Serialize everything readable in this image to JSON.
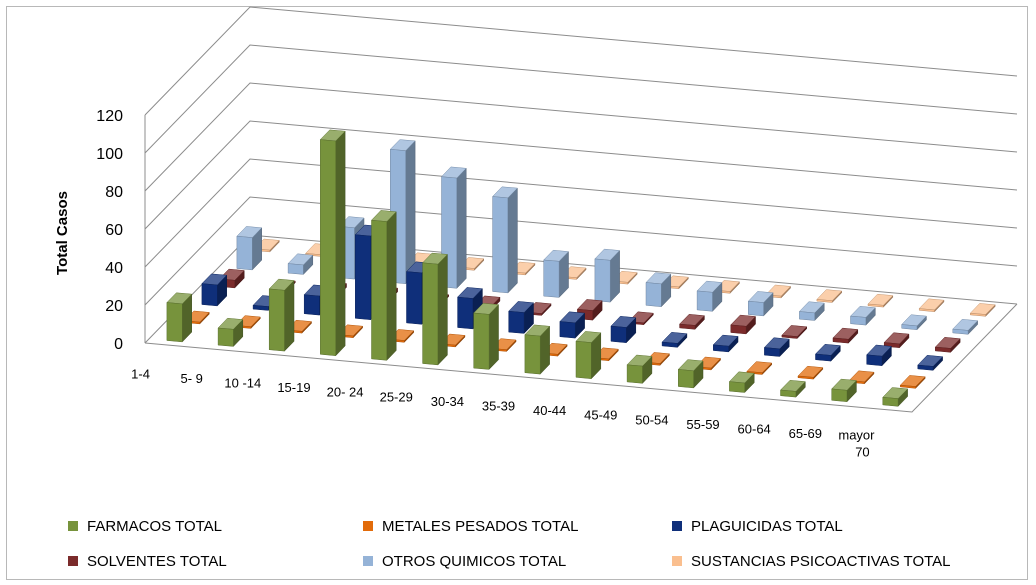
{
  "chart_data": {
    "type": "bar",
    "subtype": "3d-clustered-column",
    "ylabel": "Total Casos",
    "ylim": [
      0,
      120
    ],
    "yticks": [
      0,
      20,
      40,
      60,
      80,
      100,
      120
    ],
    "grid": true,
    "legend_position": "bottom",
    "categories": [
      "1-4",
      "5- 9",
      "10 -14",
      "15-19",
      "20- 24",
      "25-29",
      "30-34",
      "35-39",
      "40-44",
      "45-49",
      "50-54",
      "55-59",
      "60-64",
      "65-69",
      "mayor 70"
    ],
    "series": [
      {
        "name": "FARMACOS TOTAL",
        "color": "#77933c",
        "values": [
          20,
          9,
          32,
          113,
          73,
          53,
          29,
          20,
          19,
          9,
          9,
          5,
          3,
          6,
          4
        ]
      },
      {
        "name": "METALES PESADOS TOTAL",
        "color": "#e26b0a",
        "values": [
          0,
          0,
          0,
          0,
          0,
          0,
          0,
          0,
          0,
          0,
          0,
          0,
          0,
          0,
          0
        ]
      },
      {
        "name": "PLAGUICIDAS TOTAL",
        "color": "#0f2f7a",
        "values": [
          11,
          2,
          10,
          44,
          27,
          16,
          11,
          8,
          8,
          2,
          3,
          4,
          3,
          5,
          2
        ]
      },
      {
        "name": "SOLVENTES TOTAL",
        "color": "#7b2b2b",
        "values": [
          4,
          0,
          2,
          2,
          0,
          2,
          1,
          5,
          0,
          2,
          4,
          1,
          2,
          2,
          2
        ]
      },
      {
        "name": "OTROS QUIMICOS TOTAL",
        "color": "#95b3d7",
        "values": [
          17,
          5,
          27,
          70,
          58,
          50,
          19,
          22,
          12,
          10,
          7,
          4,
          4,
          2,
          2
        ]
      },
      {
        "name": "SUSTANCIAS PSICOACTIVAS TOTAL",
        "color": "#fabf8f",
        "values": [
          0,
          0,
          0,
          0,
          0,
          0,
          0,
          0,
          0,
          0,
          0,
          0,
          0,
          0,
          0
        ]
      }
    ]
  }
}
